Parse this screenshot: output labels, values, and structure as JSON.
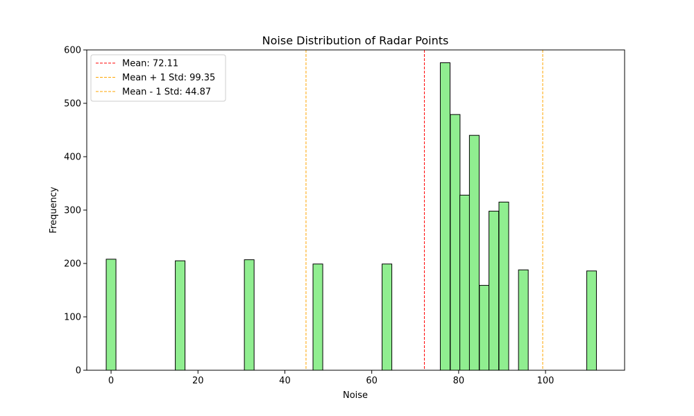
{
  "chart_data": {
    "type": "bar",
    "title": "Noise Distribution of Radar Points",
    "xlabel": "Noise",
    "ylabel": "Frequency",
    "xlim": [
      -5.6,
      118.2
    ],
    "ylim": [
      0,
      600
    ],
    "xticks": [
      0,
      20,
      40,
      60,
      80,
      100
    ],
    "yticks": [
      0,
      100,
      200,
      300,
      400,
      500,
      600
    ],
    "bar_color": "#90ee90",
    "bar_edge_color": "#000000",
    "bin_width": 2.24,
    "bins": [
      {
        "x": 0.0,
        "count": 208
      },
      {
        "x": 15.9,
        "count": 205
      },
      {
        "x": 31.8,
        "count": 207
      },
      {
        "x": 47.6,
        "count": 199
      },
      {
        "x": 63.5,
        "count": 199
      },
      {
        "x": 76.9,
        "count": 576
      },
      {
        "x": 79.2,
        "count": 479
      },
      {
        "x": 81.4,
        "count": 328
      },
      {
        "x": 83.6,
        "count": 440
      },
      {
        "x": 85.9,
        "count": 159
      },
      {
        "x": 88.1,
        "count": 298
      },
      {
        "x": 90.4,
        "count": 315
      },
      {
        "x": 94.9,
        "count": 188
      },
      {
        "x": 110.6,
        "count": 186
      }
    ],
    "reference_lines": [
      {
        "label": "Mean: 72.11",
        "x": 72.11,
        "color": "#ff0000"
      },
      {
        "label": "Mean + 1 Std: 99.35",
        "x": 99.35,
        "color": "#ffa500"
      },
      {
        "label": "Mean - 1 Std: 44.87",
        "x": 44.87,
        "color": "#ffa500"
      }
    ],
    "grid": false,
    "legend_position": "top-left"
  }
}
